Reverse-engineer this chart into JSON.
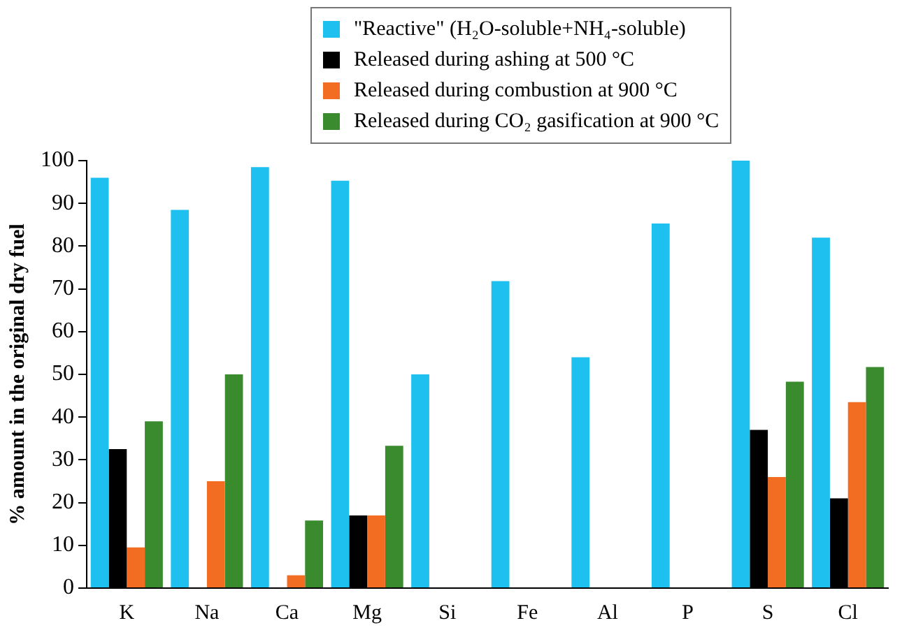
{
  "chart_data": {
    "type": "bar",
    "ylabel": "% amount in the original dry fuel",
    "categories": [
      "K",
      "Na",
      "Ca",
      "Mg",
      "Si",
      "Fe",
      "Al",
      "P",
      "S",
      "Cl"
    ],
    "series": [
      {
        "name": "\"Reactive\" (H₂O-soluble+NH₄-soluble)",
        "color": "#1ec0f0",
        "values": [
          96,
          88.5,
          98.5,
          95.3,
          50,
          71.8,
          54,
          85.3,
          100,
          82
        ]
      },
      {
        "name": "Released during ashing at 500 °C",
        "color": "#000000",
        "values": [
          32.5,
          null,
          null,
          17,
          null,
          null,
          null,
          null,
          37,
          21
        ]
      },
      {
        "name": "Released during combustion at 900 °C",
        "color": "#f26c22",
        "values": [
          9.5,
          25,
          3,
          17,
          null,
          null,
          null,
          null,
          26,
          43.5
        ]
      },
      {
        "name": "Released during CO₂ gasification at 900 °C",
        "color": "#3a8a2e",
        "values": [
          39,
          50,
          15.8,
          33.3,
          null,
          null,
          null,
          null,
          48.3,
          51.7
        ]
      }
    ],
    "ylim": [
      0,
      100
    ],
    "yticks": [
      0,
      10,
      20,
      30,
      40,
      50,
      60,
      70,
      80,
      90,
      100
    ],
    "grid": false,
    "legend": "top"
  }
}
